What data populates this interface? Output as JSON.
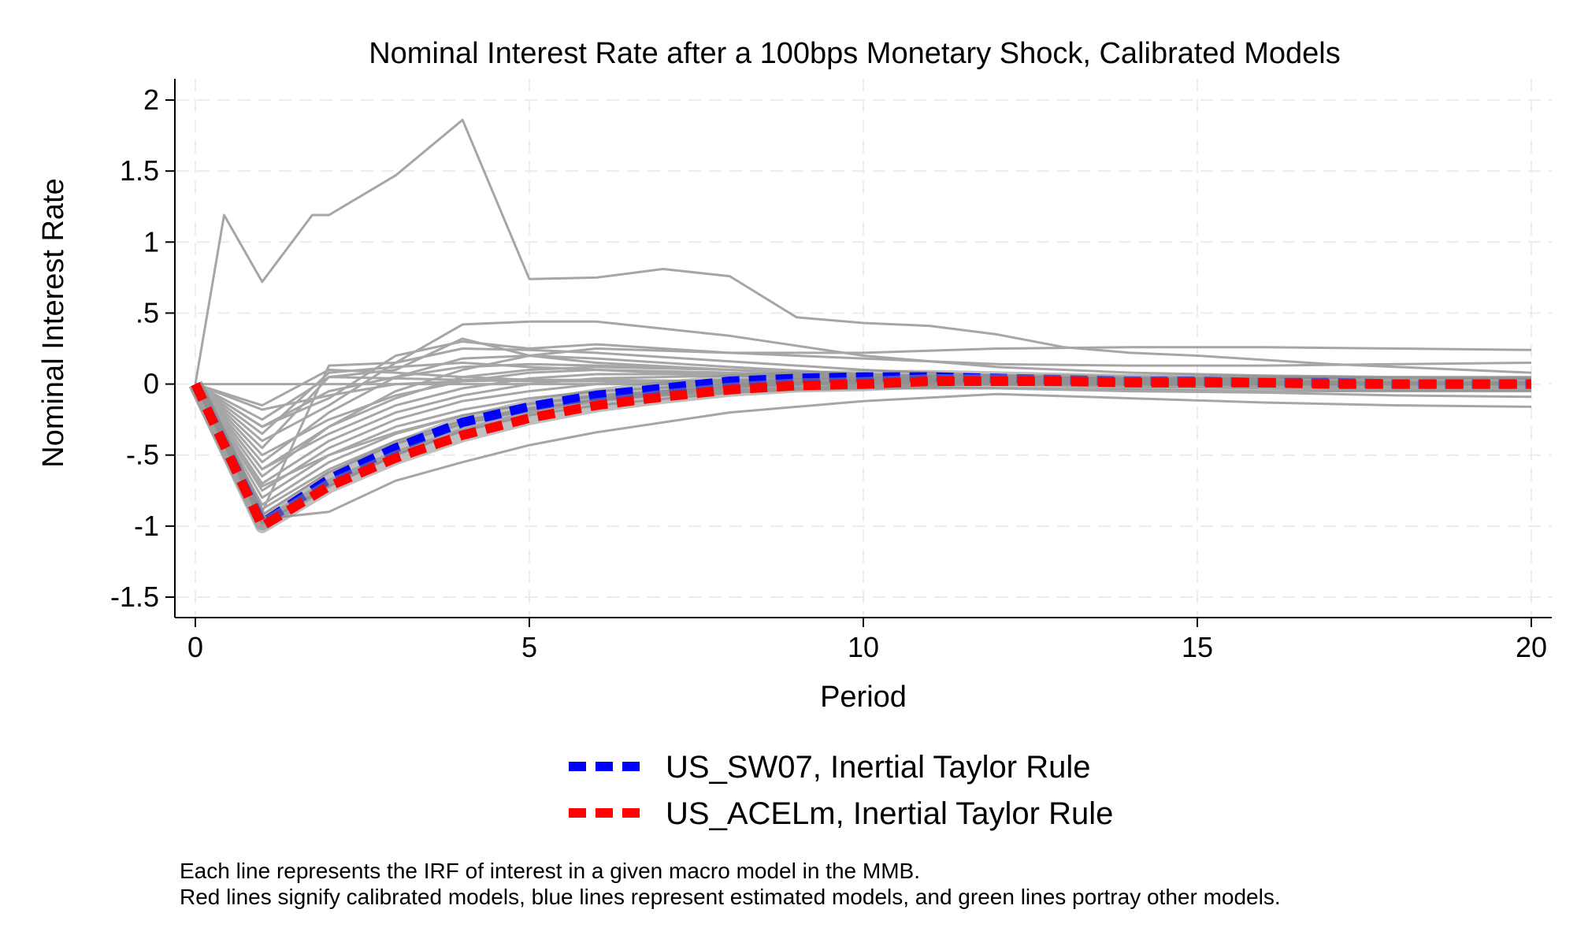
{
  "chart_data": {
    "type": "line",
    "title": "Nominal Interest Rate after a 100bps Monetary Shock, Calibrated Models",
    "xlabel": "Period",
    "ylabel": "Nominal Interest Rate",
    "xlim": [
      0,
      20
    ],
    "ylim": [
      -1.6,
      2.15
    ],
    "x_ticks": [
      0,
      5,
      10,
      15,
      20
    ],
    "x_tick_labels": [
      "0",
      "5",
      "10",
      "15",
      "20"
    ],
    "y_ticks": [
      -1.5,
      -1,
      -0.5,
      0,
      0.5,
      1,
      1.5,
      2
    ],
    "y_tick_labels": [
      "-1.5",
      "-1",
      "-.5",
      "0",
      ".5",
      "1",
      "1.5",
      "2"
    ],
    "grid": true,
    "legend_position": "bottom",
    "colors": {
      "background_lines": "#a6a6a6",
      "highlight_blue": "#0000ff",
      "highlight_red": "#ff0000",
      "grid": "#ececec"
    },
    "background_series": [
      {
        "x": [
          0,
          0.43,
          1,
          1.75,
          2,
          3,
          4,
          5,
          6,
          7,
          8,
          9,
          10,
          11,
          12,
          13,
          14,
          15,
          16,
          17,
          18,
          19,
          20
        ],
        "values": [
          0,
          1.19,
          0.72,
          1.19,
          1.19,
          1.47,
          1.86,
          0.74,
          0.75,
          0.81,
          0.76,
          0.47,
          0.43,
          0.41,
          0.35,
          0.26,
          0.22,
          0.2,
          0.17,
          0.14,
          0.12,
          0.1,
          0.08
        ]
      },
      {
        "x": [
          0,
          1,
          2,
          3,
          4,
          5,
          6,
          7,
          8,
          9,
          10,
          11,
          12,
          13,
          14,
          15,
          16,
          17,
          18,
          19,
          20
        ],
        "values": [
          0,
          0,
          0,
          0,
          0,
          0,
          0,
          0,
          0,
          0,
          0,
          0,
          0,
          0,
          0,
          0,
          0,
          0,
          0,
          0,
          0
        ]
      },
      {
        "x": [
          0,
          1,
          2,
          3,
          4,
          5,
          6,
          8,
          10,
          12,
          14,
          16,
          18,
          20
        ],
        "values": [
          0,
          -0.95,
          -0.9,
          -0.68,
          -0.55,
          -0.43,
          -0.34,
          -0.2,
          -0.12,
          -0.07,
          -0.1,
          -0.13,
          -0.15,
          -0.16
        ]
      },
      {
        "x": [
          0,
          1,
          2,
          3,
          4,
          5,
          6,
          8,
          10,
          12,
          14,
          16,
          18,
          20
        ],
        "values": [
          0,
          -0.9,
          0.13,
          0.15,
          0.42,
          0.44,
          0.44,
          0.34,
          0.2,
          0.12,
          0.08,
          0.06,
          0.05,
          0.04
        ]
      },
      {
        "x": [
          0,
          1,
          2,
          3,
          4,
          5,
          6,
          8,
          10,
          12,
          14,
          16,
          18,
          20
        ],
        "values": [
          0,
          -0.3,
          -0.1,
          0.2,
          0.3,
          0.25,
          0.28,
          0.22,
          0.22,
          0.25,
          0.26,
          0.26,
          0.25,
          0.24
        ]
      },
      {
        "x": [
          0,
          1,
          2,
          3,
          4,
          5,
          6,
          8,
          10,
          12,
          14,
          16,
          18,
          20
        ],
        "values": [
          0,
          -0.6,
          -0.3,
          -0.05,
          0.1,
          0.2,
          0.25,
          0.22,
          0.18,
          0.14,
          0.13,
          0.13,
          0.14,
          0.15
        ]
      },
      {
        "x": [
          0,
          1,
          2,
          3,
          4,
          5,
          6,
          8,
          10,
          12,
          14,
          16,
          18,
          20
        ],
        "values": [
          0,
          -0.98,
          -0.72,
          -0.5,
          -0.33,
          -0.22,
          -0.15,
          -0.06,
          -0.02,
          0,
          0.01,
          0.01,
          0.01,
          0.01
        ]
      },
      {
        "x": [
          0,
          1,
          2,
          3,
          4,
          5,
          6,
          8,
          10,
          12,
          14,
          16,
          18,
          20
        ],
        "values": [
          0,
          -0.85,
          -0.55,
          -0.35,
          -0.22,
          -0.14,
          -0.08,
          -0.02,
          0.01,
          0.02,
          0.02,
          0.02,
          0.01,
          0.01
        ]
      },
      {
        "x": [
          0,
          1,
          2,
          3,
          4,
          5,
          6,
          8,
          10,
          12,
          14,
          16,
          18,
          20
        ],
        "values": [
          0,
          -0.75,
          -0.45,
          -0.25,
          -0.12,
          -0.05,
          0,
          0.03,
          0.04,
          0.03,
          0.02,
          0.01,
          0.01,
          0
        ]
      },
      {
        "x": [
          0,
          1,
          2,
          3,
          4,
          5,
          6,
          8,
          10,
          12,
          14,
          16,
          18,
          20
        ],
        "values": [
          0,
          -0.65,
          -0.3,
          -0.1,
          0.05,
          0.1,
          0.12,
          0.1,
          0.06,
          0.03,
          0.01,
          0,
          0,
          0
        ]
      },
      {
        "x": [
          0,
          1,
          2,
          3,
          4,
          5,
          6,
          8,
          10,
          12,
          14,
          16,
          18,
          20
        ],
        "values": [
          0,
          -0.55,
          -0.2,
          0.05,
          0.18,
          0.2,
          0.18,
          0.12,
          0.07,
          0.04,
          0.02,
          0.01,
          0,
          0
        ]
      },
      {
        "x": [
          0,
          1,
          2,
          3,
          4,
          5,
          6,
          8,
          10,
          12,
          14,
          16,
          18,
          20
        ],
        "values": [
          0,
          -0.45,
          0.05,
          0.1,
          0.32,
          0.2,
          0.15,
          0.1,
          0.05,
          0.02,
          0.01,
          0,
          0,
          0
        ]
      },
      {
        "x": [
          0,
          1,
          2,
          3,
          4,
          5,
          6,
          8,
          10,
          12,
          14,
          16,
          18,
          20
        ],
        "values": [
          0,
          -0.35,
          0.08,
          0.12,
          0.15,
          0.12,
          0.1,
          0.06,
          0.03,
          0.01,
          0,
          0,
          0,
          0
        ]
      },
      {
        "x": [
          0,
          1,
          2,
          3,
          4,
          5,
          6,
          8,
          10,
          12,
          14,
          16,
          18,
          20
        ],
        "values": [
          0,
          -0.25,
          0.05,
          0.04,
          0.03,
          0.02,
          0.02,
          0.01,
          0,
          0,
          0,
          0,
          0,
          0
        ]
      },
      {
        "x": [
          0,
          1,
          2,
          3,
          4,
          5,
          6,
          8,
          10,
          12,
          14,
          16,
          18,
          20
        ],
        "values": [
          0,
          -0.18,
          -0.08,
          0,
          0.02,
          0.03,
          0.03,
          0.02,
          0.01,
          0,
          0,
          0,
          0,
          0
        ]
      },
      {
        "x": [
          0,
          1,
          2,
          3,
          4,
          5,
          6,
          8,
          10,
          12,
          14,
          16,
          18,
          20
        ],
        "values": [
          0,
          -0.7,
          -0.4,
          -0.2,
          -0.08,
          0,
          0.04,
          0.06,
          0.05,
          0.03,
          0.02,
          0.01,
          0.01,
          0
        ]
      },
      {
        "x": [
          0,
          1,
          2,
          3,
          4,
          5,
          6,
          8,
          10,
          12,
          14,
          16,
          18,
          20
        ],
        "values": [
          0,
          -0.8,
          -0.5,
          -0.3,
          -0.18,
          -0.1,
          -0.05,
          0,
          0.02,
          0.02,
          0.01,
          0.01,
          0,
          0
        ]
      },
      {
        "x": [
          0,
          1,
          2,
          3,
          4,
          5,
          6,
          8,
          10,
          12,
          14,
          16,
          18,
          20
        ],
        "values": [
          0,
          -0.5,
          -0.25,
          -0.08,
          0.02,
          0.08,
          0.1,
          0.08,
          0.05,
          0.02,
          0.01,
          0,
          0,
          0
        ]
      },
      {
        "x": [
          0,
          1,
          2,
          3,
          4,
          5,
          6,
          8,
          10,
          12,
          14,
          16,
          18,
          20
        ],
        "values": [
          0,
          -0.92,
          -0.62,
          -0.42,
          -0.28,
          -0.18,
          -0.11,
          -0.04,
          -0.01,
          0,
          0,
          0,
          0,
          0
        ]
      },
      {
        "x": [
          0,
          1,
          2,
          3,
          4,
          5,
          6,
          8,
          10,
          12,
          14,
          16,
          18,
          20
        ],
        "values": [
          0,
          -0.4,
          -0.15,
          0.15,
          0.25,
          0.24,
          0.22,
          0.16,
          0.1,
          0.06,
          0.03,
          0.02,
          0.01,
          0
        ]
      },
      {
        "x": [
          0,
          1,
          2,
          3,
          4,
          5,
          6,
          8,
          10,
          12,
          14,
          16,
          18,
          20
        ],
        "values": [
          0,
          -0.6,
          -0.35,
          -0.15,
          -0.03,
          0.04,
          0.07,
          0.07,
          0.05,
          0.04,
          0.02,
          0.01,
          0.01,
          0
        ]
      },
      {
        "x": [
          0,
          1,
          2,
          3,
          4,
          5,
          6,
          8,
          10,
          12,
          14,
          16,
          18,
          20
        ],
        "values": [
          0,
          -0.15,
          0.1,
          0.08,
          0.05,
          0.03,
          0.02,
          0.01,
          0,
          0,
          0,
          0,
          0,
          0
        ]
      },
      {
        "x": [
          0,
          1,
          2,
          3,
          4,
          5,
          6,
          8,
          10,
          12,
          14,
          16,
          18,
          20
        ],
        "values": [
          0,
          -0.72,
          -0.5,
          -0.34,
          -0.22,
          -0.14,
          -0.09,
          -0.04,
          -0.02,
          -0.03,
          -0.05,
          -0.06,
          -0.08,
          -0.09
        ]
      },
      {
        "x": [
          0,
          1,
          2,
          3,
          4,
          5,
          6,
          8,
          10,
          12,
          14,
          16,
          18,
          20
        ],
        "values": [
          0,
          -0.88,
          -0.6,
          -0.4,
          -0.26,
          -0.17,
          -0.11,
          -0.05,
          -0.03,
          -0.03,
          -0.04,
          -0.05,
          -0.05,
          -0.05
        ]
      },
      {
        "x": [
          0,
          1,
          2,
          3,
          4,
          5,
          6,
          8,
          10,
          12,
          14,
          16,
          18,
          20
        ],
        "values": [
          0,
          -0.3,
          -0.05,
          0.05,
          0.12,
          0.14,
          0.13,
          0.1,
          0.07,
          0.05,
          0.04,
          0.04,
          0.05,
          0.05
        ]
      }
    ],
    "series": [
      {
        "name": "US_SW07, Inertial Taylor Rule",
        "color": "#0000ff",
        "x": [
          0,
          1,
          2,
          3,
          4,
          5,
          6,
          7,
          8,
          9,
          10,
          11,
          12,
          13,
          14,
          15,
          16,
          17,
          18,
          19,
          20
        ],
        "values": [
          0,
          -0.98,
          -0.67,
          -0.45,
          -0.27,
          -0.16,
          -0.08,
          -0.03,
          0.02,
          0.04,
          0.05,
          0.05,
          0.04,
          0.03,
          0.02,
          0.02,
          0.01,
          0.01,
          0,
          0,
          0
        ]
      },
      {
        "name": "US_ACELm, Inertial Taylor Rule",
        "color": "#ff0000",
        "x": [
          0,
          1,
          2,
          3,
          4,
          5,
          6,
          7,
          8,
          9,
          10,
          11,
          12,
          13,
          14,
          15,
          16,
          17,
          18,
          19,
          20
        ],
        "values": [
          0,
          -1.0,
          -0.72,
          -0.52,
          -0.36,
          -0.24,
          -0.15,
          -0.09,
          -0.04,
          -0.01,
          0,
          0.02,
          0.02,
          0.02,
          0.01,
          0.01,
          0.01,
          0,
          0,
          0,
          0
        ]
      }
    ],
    "note_lines": [
      "Each line represents the IRF of interest in a given macro model in the MMB.",
      "Red lines signify calibrated models, blue lines represent estimated models, and green lines portray other models."
    ]
  }
}
